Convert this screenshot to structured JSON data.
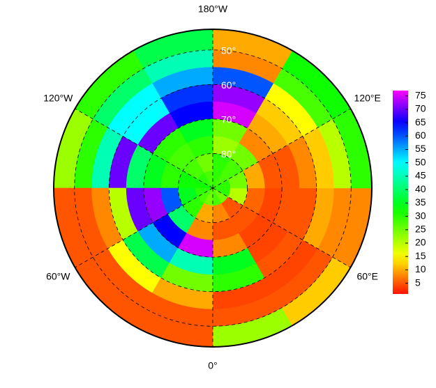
{
  "chart_data": {
    "type": "polar-heatmap",
    "lon_bins": [
      0,
      30,
      60,
      90,
      120,
      150,
      180,
      210,
      240,
      270,
      300,
      330,
      360
    ],
    "lat_bins": [
      44,
      50,
      55,
      60,
      65,
      70,
      75,
      80,
      85,
      90
    ],
    "values": [
      [
        22,
        12,
        8,
        30,
        32,
        10,
        38,
        30,
        22,
        5,
        5,
        5
      ],
      [
        5,
        5,
        8,
        20,
        28,
        8,
        45,
        40,
        30,
        5,
        5,
        5
      ],
      [
        4,
        4,
        10,
        12,
        15,
        60,
        55,
        50,
        45,
        8,
        15,
        10
      ],
      [
        30,
        5,
        5,
        8,
        12,
        72,
        62,
        50,
        70,
        20,
        38,
        25
      ],
      [
        35,
        4,
        5,
        5,
        10,
        75,
        65,
        70,
        40,
        70,
        55,
        45
      ],
      [
        8,
        4,
        4,
        5,
        8,
        25,
        35,
        30,
        35,
        72,
        65,
        75
      ],
      [
        5,
        5,
        6,
        10,
        25,
        22,
        30,
        28,
        30,
        60,
        40,
        8
      ],
      [
        8,
        5,
        20,
        25,
        28,
        30,
        25,
        28,
        32,
        35,
        30,
        10
      ],
      [
        28,
        25,
        30,
        30,
        28,
        30,
        28,
        30,
        32,
        30,
        28,
        25
      ]
    ],
    "lon_ticks": [
      {
        "value": 180,
        "label": "180°W"
      },
      {
        "value": 120,
        "label": "120°E"
      },
      {
        "value": 60,
        "label": "60°E"
      },
      {
        "value": 0,
        "label": "0°"
      },
      {
        "value": 300,
        "label": "60°W"
      },
      {
        "value": 240,
        "label": "120°W"
      }
    ],
    "lat_ticks": [
      {
        "value": 50,
        "label": "50°"
      },
      {
        "value": 60,
        "label": "60°"
      },
      {
        "value": 70,
        "label": "70°"
      },
      {
        "value": 80,
        "label": "80°"
      }
    ],
    "colormap": [
      [
        0,
        "#ff0000"
      ],
      [
        15,
        "#ffff00"
      ],
      [
        33,
        "#00ff00"
      ],
      [
        50,
        "#00ffff"
      ],
      [
        65,
        "#0000ff"
      ],
      [
        77,
        "#ff00ff"
      ]
    ],
    "zlim": [
      1,
      77
    ],
    "zticks": [
      5,
      10,
      15,
      20,
      25,
      30,
      35,
      40,
      45,
      50,
      55,
      60,
      65,
      70,
      75
    ]
  }
}
